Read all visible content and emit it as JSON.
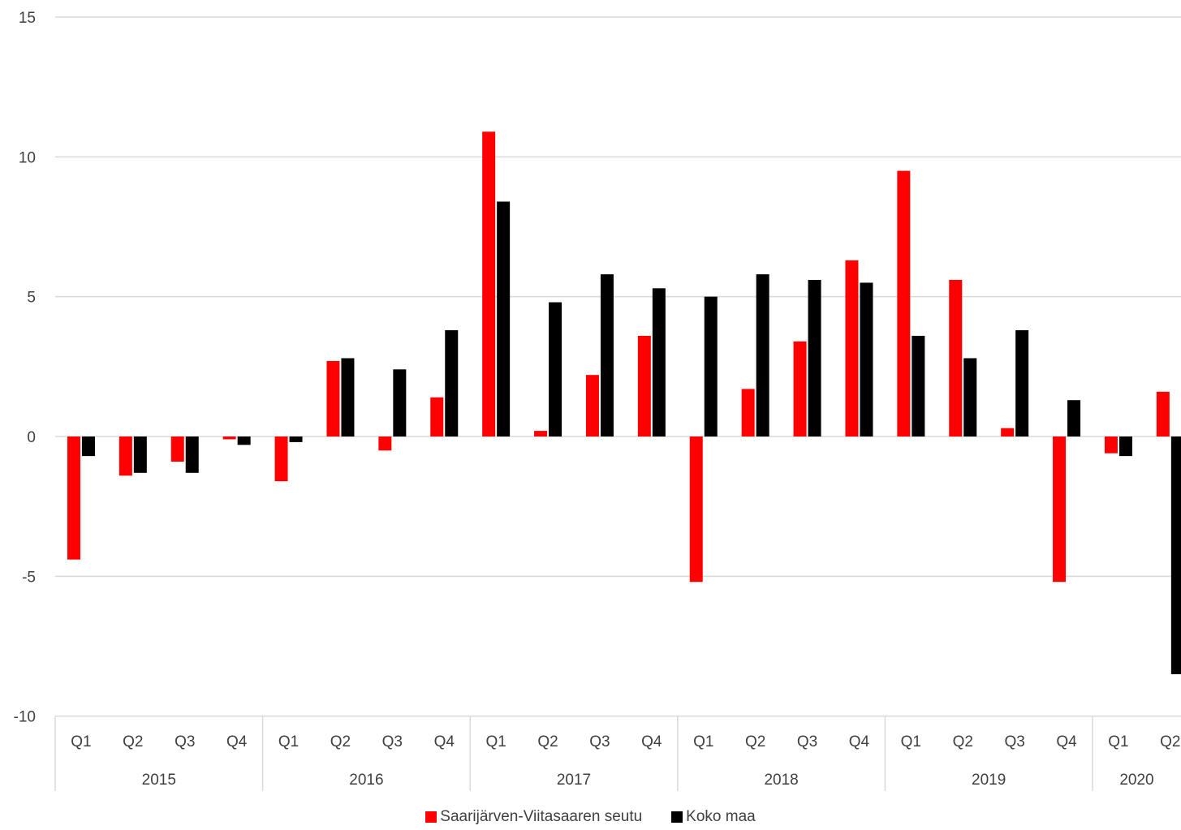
{
  "chart_data": {
    "type": "bar",
    "title": "",
    "xlabel": "",
    "ylabel": "",
    "ylim": [
      -10,
      15
    ],
    "yticks": [
      15,
      10,
      5,
      0,
      -5,
      -10
    ],
    "grid": true,
    "legend_position": "bottom",
    "groups": [
      {
        "label": "2015",
        "quarters": [
          "Q1",
          "Q2",
          "Q3",
          "Q4"
        ]
      },
      {
        "label": "2016",
        "quarters": [
          "Q1",
          "Q2",
          "Q3",
          "Q4"
        ]
      },
      {
        "label": "2017",
        "quarters": [
          "Q1",
          "Q2",
          "Q3",
          "Q4"
        ]
      },
      {
        "label": "2018",
        "quarters": [
          "Q1",
          "Q2",
          "Q3",
          "Q4"
        ]
      },
      {
        "label": "2019",
        "quarters": [
          "Q1",
          "Q2",
          "Q3",
          "Q4"
        ]
      },
      {
        "label": "2020",
        "quarters": [
          "Q1",
          "Q2"
        ]
      }
    ],
    "series": [
      {
        "name": "Saarijärven-Viitasaaren seutu",
        "color": "#ff0000",
        "values": [
          -4.4,
          -1.4,
          -0.9,
          -0.1,
          -1.6,
          2.7,
          -0.5,
          1.4,
          10.9,
          0.2,
          2.2,
          3.6,
          -5.2,
          1.7,
          3.4,
          6.3,
          9.5,
          5.6,
          0.3,
          -5.2,
          -0.6,
          1.6
        ]
      },
      {
        "name": "Koko maa",
        "color": "#000000",
        "values": [
          -0.7,
          -1.3,
          -1.3,
          -0.3,
          -0.2,
          2.8,
          2.4,
          3.8,
          8.4,
          4.8,
          5.8,
          5.3,
          5.0,
          5.8,
          5.6,
          5.5,
          3.6,
          2.8,
          3.8,
          1.3,
          -0.7,
          -8.5
        ]
      }
    ]
  }
}
